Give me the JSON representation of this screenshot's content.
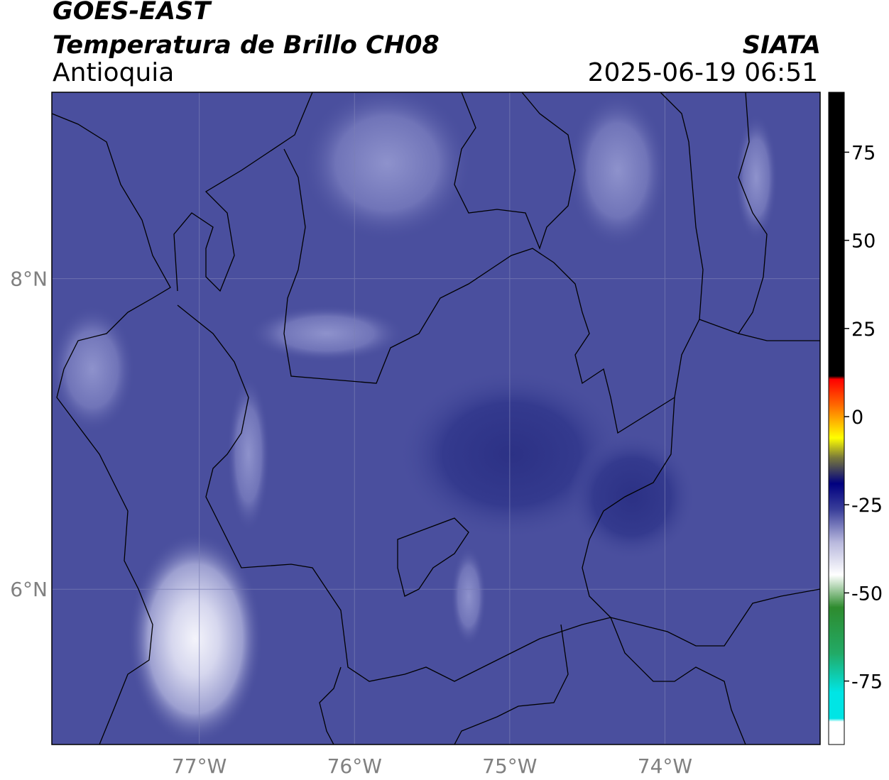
{
  "header": {
    "satellite": "GOES-EAST",
    "product": "Temperatura de Brillo CH08",
    "region": "Antioquia",
    "organization": "SIATA",
    "datetime": "2025-06-19 06:51"
  },
  "map": {
    "lon_range": [
      -77.95,
      -73.0
    ],
    "lat_range": [
      5.0,
      9.2
    ],
    "lon_ticks": [
      {
        "value": -77,
        "label": "77°W"
      },
      {
        "value": -76,
        "label": "76°W"
      },
      {
        "value": -75,
        "label": "75°W"
      },
      {
        "value": -74,
        "label": "74°W"
      }
    ],
    "lat_ticks": [
      {
        "value": 8,
        "label": "8°N"
      },
      {
        "value": 6,
        "label": "6°N"
      }
    ],
    "background_color": "#4a4f9e",
    "gridlines": true
  },
  "colorbar": {
    "range": [
      -93,
      92
    ],
    "ticks": [
      {
        "value": 75,
        "label": "75"
      },
      {
        "value": 50,
        "label": "50"
      },
      {
        "value": 25,
        "label": "25"
      },
      {
        "value": 0,
        "label": "0"
      },
      {
        "value": -25,
        "label": "-25"
      },
      {
        "value": -50,
        "label": "-50"
      },
      {
        "value": -75,
        "label": "-75"
      }
    ]
  }
}
